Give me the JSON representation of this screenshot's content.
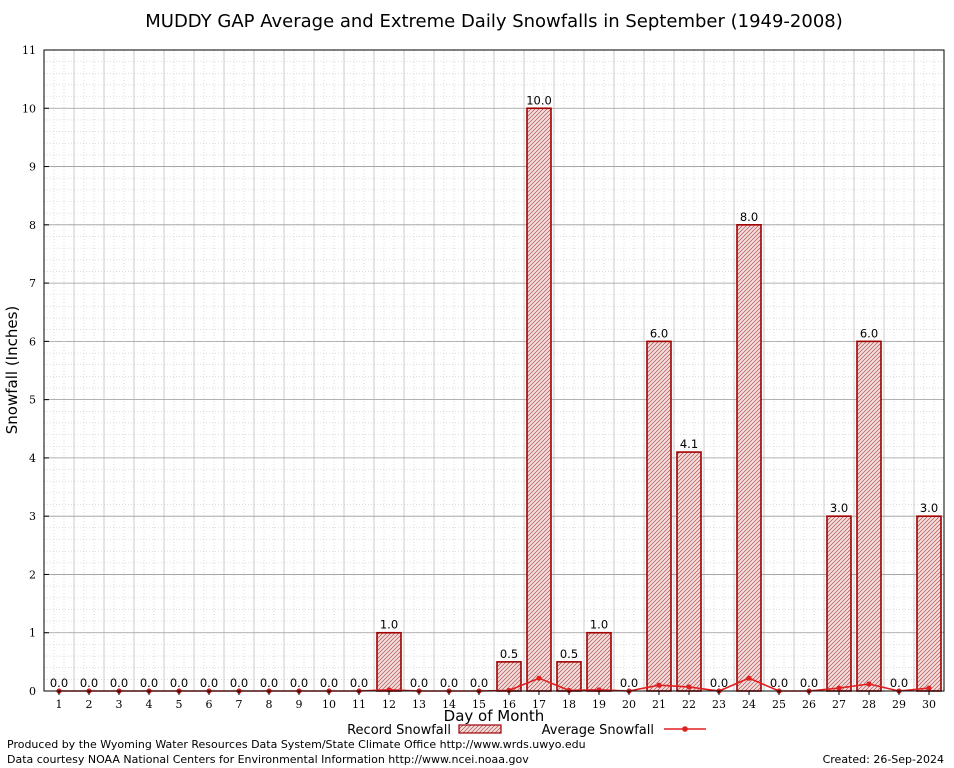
{
  "chart_data": {
    "type": "bar",
    "title": "MUDDY GAP Average and Extreme Daily Snowfalls in September (1949-2008)",
    "xlabel": "Day of Month",
    "ylabel": "Snowfall (Inches)",
    "ylim": [
      0,
      11
    ],
    "yticks": [
      "0",
      "1",
      "2",
      "3",
      "4",
      "5",
      "6",
      "7",
      "8",
      "9",
      "10",
      "11"
    ],
    "grid": true,
    "categories": [
      "1",
      "2",
      "3",
      "4",
      "5",
      "6",
      "7",
      "8",
      "9",
      "10",
      "11",
      "12",
      "13",
      "14",
      "15",
      "16",
      "17",
      "18",
      "19",
      "20",
      "21",
      "22",
      "23",
      "24",
      "25",
      "26",
      "27",
      "28",
      "29",
      "30"
    ],
    "series": [
      {
        "name": "Record Snowfall",
        "kind": "bar",
        "color": "#a00000",
        "values": [
          0.0,
          0.0,
          0.0,
          0.0,
          0.0,
          0.0,
          0.0,
          0.0,
          0.0,
          0.0,
          0.0,
          1.0,
          0.0,
          0.0,
          0.0,
          0.5,
          10.0,
          0.5,
          1.0,
          0.0,
          6.0,
          4.1,
          0.0,
          8.0,
          0.0,
          0.0,
          3.0,
          6.0,
          0.0,
          3.0
        ],
        "labels": [
          "0.0",
          "0.0",
          "0.0",
          "0.0",
          "0.0",
          "0.0",
          "0.0",
          "0.0",
          "0.0",
          "0.0",
          "0.0",
          "1.0",
          "0.0",
          "0.0",
          "0.0",
          "0.5",
          "10.0",
          "0.5",
          "1.0",
          "0.0",
          "6.0",
          "4.1",
          "0.0",
          "8.0",
          "0.0",
          "0.0",
          "3.0",
          "6.0",
          "0.0",
          "3.0"
        ]
      },
      {
        "name": "Average Snowfall",
        "kind": "line",
        "color": "#e02020",
        "values": [
          0,
          0,
          0,
          0,
          0,
          0,
          0,
          0,
          0,
          0,
          0,
          0.02,
          0,
          0,
          0,
          0.01,
          0.22,
          0.01,
          0.02,
          0,
          0.1,
          0.07,
          0,
          0.22,
          0,
          0,
          0.05,
          0.12,
          0,
          0.05
        ]
      }
    ],
    "legend_position": "bottom"
  },
  "footer": {
    "left_line1": "Produced by the Wyoming Water Resources Data System/State Climate Office http://www.wrds.uwyo.edu",
    "left_line2": "Data courtesy NOAA National Centers for Environmental Information http://www.ncei.noaa.gov",
    "created": "Created:  26-Sep-2024"
  }
}
